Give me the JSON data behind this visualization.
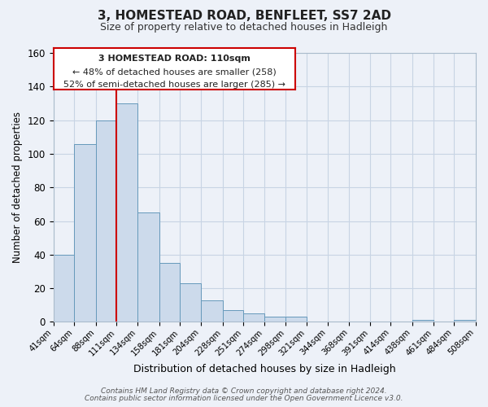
{
  "title": "3, HOMESTEAD ROAD, BENFLEET, SS7 2AD",
  "subtitle": "Size of property relative to detached houses in Hadleigh",
  "xlabel": "Distribution of detached houses by size in Hadleigh",
  "ylabel": "Number of detached properties",
  "bar_edges": [
    41,
    64,
    88,
    111,
    134,
    158,
    181,
    204,
    228,
    251,
    274,
    298,
    321,
    344,
    368,
    391,
    414,
    438,
    461,
    484,
    508
  ],
  "bar_heights": [
    40,
    106,
    120,
    130,
    65,
    35,
    23,
    13,
    7,
    5,
    3,
    3,
    0,
    0,
    0,
    0,
    0,
    1,
    0,
    1
  ],
  "tick_labels": [
    "41sqm",
    "64sqm",
    "88sqm",
    "111sqm",
    "134sqm",
    "158sqm",
    "181sqm",
    "204sqm",
    "228sqm",
    "251sqm",
    "274sqm",
    "298sqm",
    "321sqm",
    "344sqm",
    "368sqm",
    "391sqm",
    "414sqm",
    "438sqm",
    "461sqm",
    "484sqm",
    "508sqm"
  ],
  "bar_color": "#ccdaeb",
  "bar_edge_color": "#6699bb",
  "grid_color": "#c8d4e4",
  "vline_x": 111,
  "vline_color": "#cc0000",
  "ann_line1": "3 HOMESTEAD ROAD: 110sqm",
  "ann_line2": "← 48% of detached houses are smaller (258)",
  "ann_line3": "52% of semi-detached houses are larger (285) →",
  "ylim": [
    0,
    160
  ],
  "yticks": [
    0,
    20,
    40,
    60,
    80,
    100,
    120,
    140,
    160
  ],
  "footer_line1": "Contains HM Land Registry data © Crown copyright and database right 2024.",
  "footer_line2": "Contains public sector information licensed under the Open Government Licence v3.0.",
  "bg_color": "#edf1f8",
  "plot_bg_color": "#edf1f8"
}
